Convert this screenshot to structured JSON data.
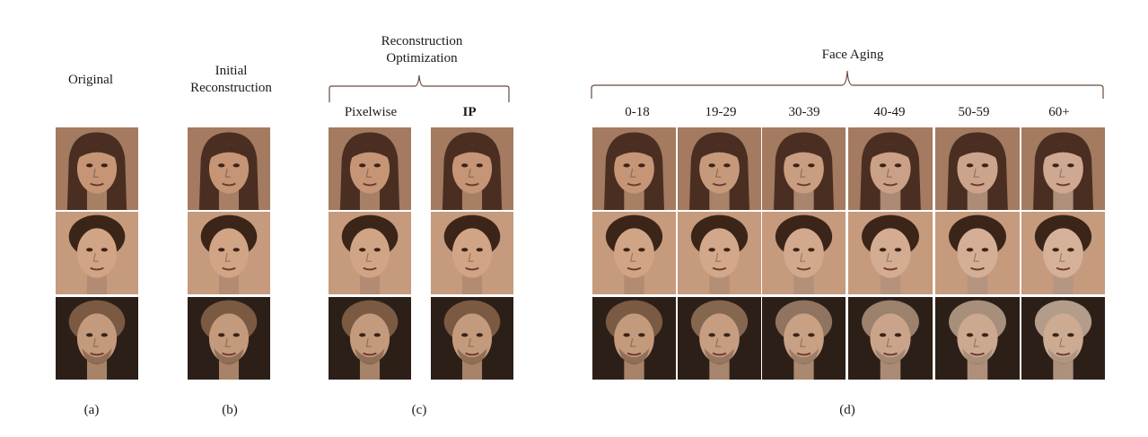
{
  "headers": {
    "original": "Original",
    "initial_line1": "Initial",
    "initial_line2": "Reconstruction",
    "recon_opt_line1": "Reconstruction",
    "recon_opt_line2": "Optimization",
    "pixelwise": "Pixelwise",
    "ip": "IP",
    "face_aging": "Face Aging"
  },
  "age_groups": [
    "0-18",
    "19-29",
    "30-39",
    "40-49",
    "50-59",
    "60+"
  ],
  "captions": {
    "a": "(a)",
    "b": "(b)",
    "c": "(c)",
    "d": "(d)"
  },
  "colors": {
    "tone_light": "#c99a7c",
    "tone_mid": "#9a6a4e",
    "tone_dark": "#3d2a1e",
    "brace": "#6b4a3a"
  }
}
